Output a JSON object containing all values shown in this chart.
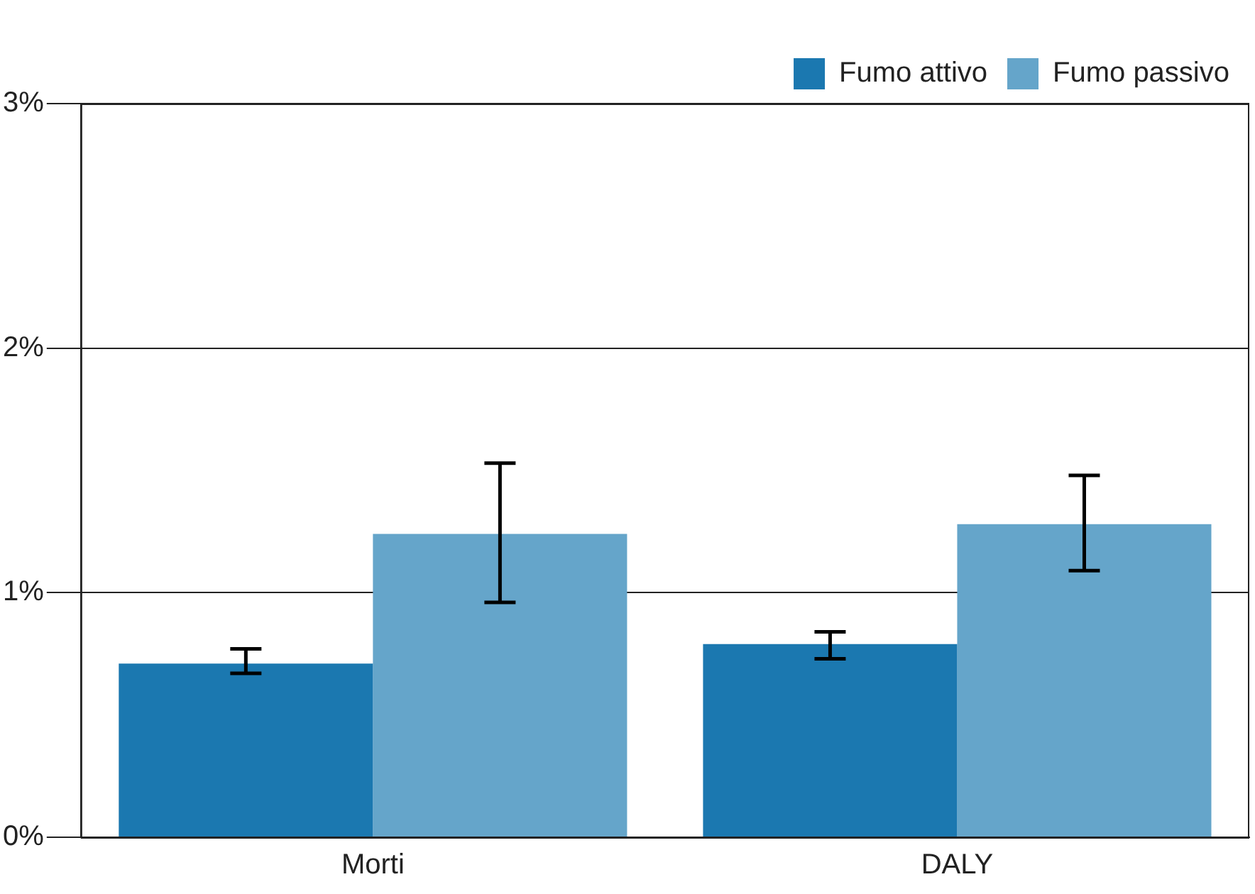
{
  "chart_data": {
    "type": "bar",
    "categories": [
      "Morti",
      "DALY"
    ],
    "series": [
      {
        "name": "Fumo attivo",
        "color": "#1b78b0",
        "values": [
          0.71,
          0.79
        ],
        "errors": [
          [
            0.67,
            0.77
          ],
          [
            0.73,
            0.84
          ]
        ]
      },
      {
        "name": "Fumo passivo",
        "color": "#65a5ca",
        "values": [
          1.24,
          1.28
        ],
        "errors": [
          [
            0.96,
            1.53
          ],
          [
            1.09,
            1.48
          ]
        ]
      }
    ],
    "ylim": [
      0,
      3
    ],
    "yticks": [
      {
        "value": 0,
        "label": "0%"
      },
      {
        "value": 1,
        "label": "1%"
      },
      {
        "value": 2,
        "label": "2%"
      },
      {
        "value": 3,
        "label": "3%"
      }
    ],
    "grid": "y",
    "legend": "top right"
  }
}
